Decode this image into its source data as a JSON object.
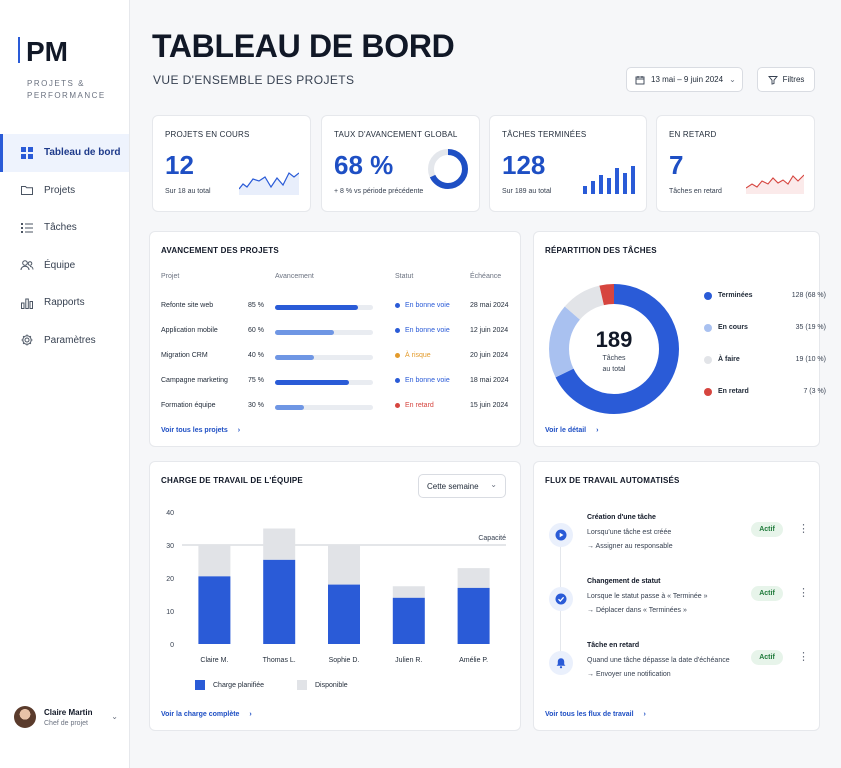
{
  "brand": {
    "logo": "PM",
    "tagline": "PROJETS & PERFORMANCE"
  },
  "nav": [
    {
      "label": "Tableau de bord",
      "icon": "dashboard-grid-icon",
      "active": true
    },
    {
      "label": "Projets",
      "icon": "folder-icon"
    },
    {
      "label": "Tâches",
      "icon": "checklist-icon"
    },
    {
      "label": "Équipe",
      "icon": "team-icon"
    },
    {
      "label": "Rapports",
      "icon": "bar-chart-icon"
    },
    {
      "label": "Paramètres",
      "icon": "gear-icon"
    }
  ],
  "user": {
    "name": "Claire Martin",
    "role": "Chef de projet"
  },
  "header": {
    "title": "TABLEAU DE BORD",
    "subtitle": "VUE D'ENSEMBLE DES PROJETS",
    "date_range": "13 mai – 9 juin 2024",
    "filters_label": "Filtres"
  },
  "kpis": {
    "active": {
      "label": "PROJETS EN COURS",
      "value": "12",
      "sub": "Sur 18 au total"
    },
    "progress": {
      "label": "TAUX D'AVANCEMENT GLOBAL",
      "value": "68 %",
      "sub": "+ 8 % vs période précédente",
      "ratio": 0.68
    },
    "done": {
      "label": "TÂCHES TERMINÉES",
      "value": "128",
      "sub": "Sur 189 au total"
    },
    "late": {
      "label": "EN RETARD",
      "value": "7",
      "sub": "Tâches en retard"
    }
  },
  "projects": {
    "title": "AVANCEMENT DES PROJETS",
    "headers": {
      "project": "Projet",
      "progress": "Avancement",
      "status": "Statut",
      "due": "Échéance"
    },
    "rows": [
      {
        "name": "Refonte site web",
        "pct_label": "85 %",
        "pct": 85,
        "status": "En bonne voie",
        "status_color": "#2a5bd7",
        "bar_color": "#2a5bd7",
        "due": "28 mai 2024"
      },
      {
        "name": "Application mobile",
        "pct_label": "60 %",
        "pct": 60,
        "status": "En bonne voie",
        "status_color": "#2a5bd7",
        "bar_color": "#6f96e4",
        "due": "12 juin 2024"
      },
      {
        "name": "Migration CRM",
        "pct_label": "40 %",
        "pct": 40,
        "status": "À risque",
        "status_color": "#e39b2c",
        "bar_color": "#6f96e4",
        "due": "20 juin 2024"
      },
      {
        "name": "Campagne marketing",
        "pct_label": "75 %",
        "pct": 75,
        "status": "En bonne voie",
        "status_color": "#2a5bd7",
        "bar_color": "#2a5bd7",
        "due": "18 mai 2024"
      },
      {
        "name": "Formation équipe",
        "pct_label": "30 %",
        "pct": 30,
        "status": "En retard",
        "status_color": "#d6453f",
        "bar_color": "#6f96e4",
        "due": "15 juin 2024"
      }
    ],
    "link": "Voir tous les projets"
  },
  "tasks": {
    "title": "RÉPARTITION DES TÂCHES",
    "total": "189",
    "total_label_1": "Tâches",
    "total_label_2": "au total",
    "legend": [
      {
        "label": "Terminées",
        "value": "128 (68 %)",
        "color": "#2a5bd7",
        "count": 128
      },
      {
        "label": "En cours",
        "value": "35 (19 %)",
        "color": "#a9c1f0",
        "count": 35
      },
      {
        "label": "À faire",
        "value": "19 (10 %)",
        "color": "#e2e4e8",
        "count": 19
      },
      {
        "label": "En retard",
        "value": "7 (3 %)",
        "color": "#d6453f",
        "count": 7
      }
    ],
    "link": "Voir le détail"
  },
  "workload": {
    "title": "CHARGE DE TRAVAIL DE L'ÉQUIPE",
    "period": "Cette semaine",
    "capacity_label": "Capacité",
    "link": "Voir la charge complète"
  },
  "chart_data": {
    "type": "bar",
    "stacked": true,
    "categories": [
      "Claire M.",
      "Thomas L.",
      "Sophie D.",
      "Julien R.",
      "Amélie P."
    ],
    "series": [
      {
        "name": "Charge planifiée",
        "values": [
          20.5,
          25.5,
          18,
          14,
          17
        ],
        "color": "#2a5bd7"
      },
      {
        "name": "Disponible",
        "values": [
          9.5,
          9.5,
          12,
          3.5,
          6
        ],
        "color": "#e1e3e7"
      }
    ],
    "yticks": [
      0,
      10,
      20,
      30,
      40
    ],
    "ylim": [
      0,
      40
    ],
    "capacity": 30,
    "grid": false,
    "legend_position": "bottom"
  },
  "workflows": {
    "title": "FLUX DE TRAVAIL AUTOMATISÉS",
    "items": [
      {
        "title": "Création d'une tâche",
        "line1": "Lorsqu'une tâche est créée",
        "line2": "→ Assigner au responsable",
        "badge": "Actif",
        "icon": "play-icon"
      },
      {
        "title": "Changement de statut",
        "line1": "Lorsque le statut passe à « Terminée »",
        "line2": "→ Déplacer dans « Terminées »",
        "badge": "Actif",
        "icon": "check-circle-icon"
      },
      {
        "title": "Tâche en retard",
        "line1": "Quand une tâche dépasse la date d'échéance",
        "line2": "→ Envoyer une notification",
        "badge": "Actif",
        "icon": "bell-icon"
      }
    ],
    "link": "Voir tous les flux de travail"
  }
}
